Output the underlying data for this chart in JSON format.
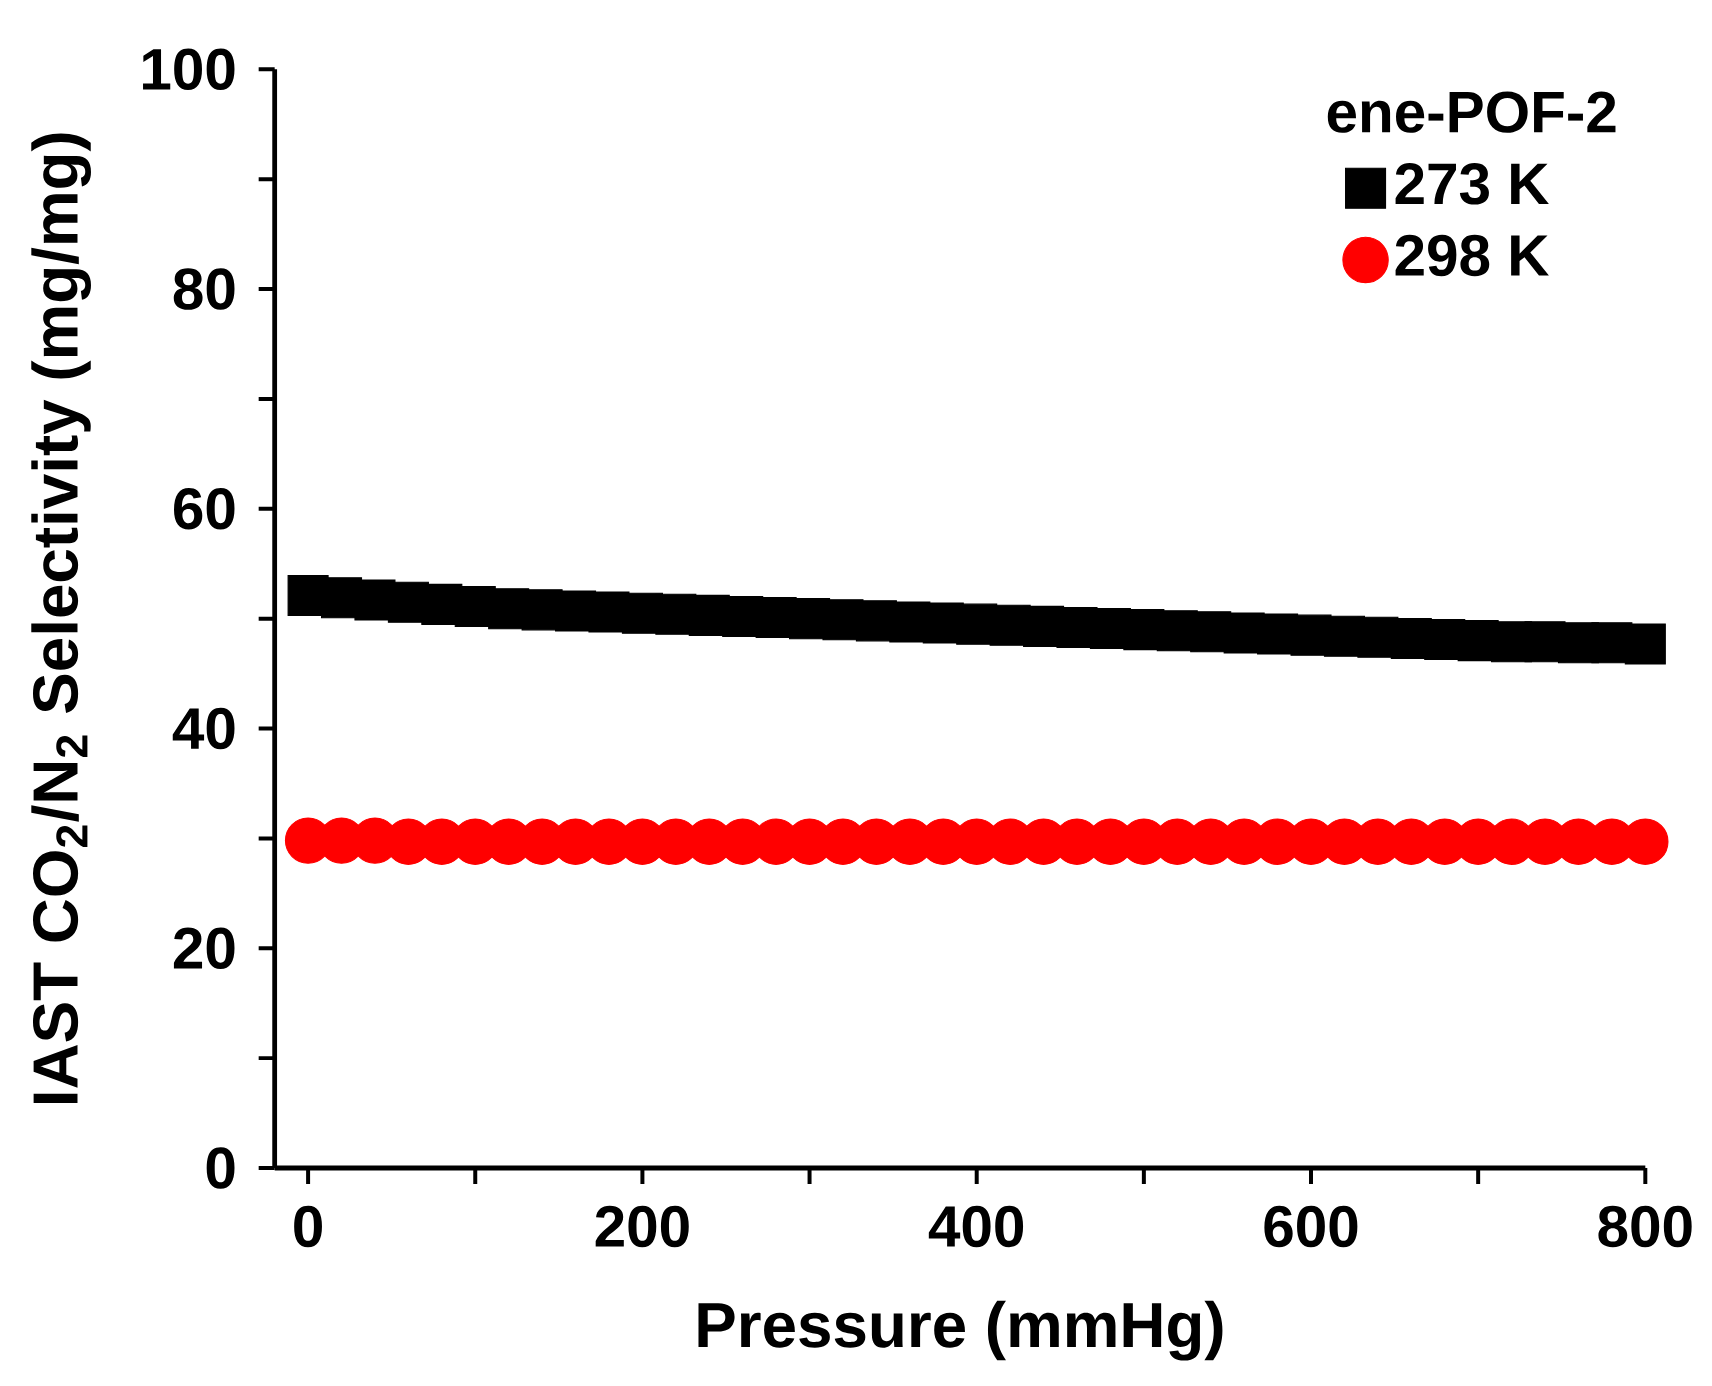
{
  "chart_data": {
    "type": "scatter",
    "xlabel": "Pressure (mmHg)",
    "ylabel": "IAST CO$_{2}$/N$_{2}$ Selectivity (mg/mg)",
    "legend_title": "ene-POF-2",
    "legend": "top right",
    "xlim": [
      -20,
      800
    ],
    "ylim": [
      0,
      100
    ],
    "xticks": [
      0,
      {
        "value": 100,
        "label": null
      },
      200,
      {
        "value": 300,
        "label": null
      },
      400,
      {
        "value": 500,
        "label": null
      },
      600,
      {
        "value": 700,
        "label": null
      },
      800
    ],
    "yticks": [
      0,
      {
        "value": 10,
        "label": null
      },
      20,
      {
        "value": 30,
        "label": null
      },
      40,
      {
        "value": 50,
        "label": null
      },
      60,
      {
        "value": 70,
        "label": null
      },
      80,
      {
        "value": 90,
        "label": null
      },
      100
    ],
    "x": [
      0,
      20,
      40,
      60,
      80,
      100,
      120,
      140,
      160,
      180,
      200,
      220,
      240,
      260,
      280,
      300,
      320,
      340,
      360,
      380,
      400,
      420,
      440,
      460,
      480,
      500,
      520,
      540,
      560,
      580,
      600,
      620,
      640,
      660,
      680,
      700,
      720,
      740,
      760,
      780,
      800
    ],
    "series": [
      {
        "name": "273 K",
        "color": "#000000",
        "marker": "square",
        "values": [
          52.1,
          51.9,
          51.7,
          51.5,
          51.3,
          51.1,
          50.9,
          50.8,
          50.7,
          50.6,
          50.5,
          50.4,
          50.3,
          50.2,
          50.1,
          50.0,
          49.9,
          49.8,
          49.7,
          49.6,
          49.5,
          49.4,
          49.3,
          49.2,
          49.1,
          49.0,
          48.9,
          48.8,
          48.7,
          48.6,
          48.5,
          48.4,
          48.3,
          48.2,
          48.1,
          48.0,
          47.9,
          47.9,
          47.8,
          47.8,
          47.7
        ]
      },
      {
        "name": "298 K",
        "color": "#ff0000",
        "marker": "circle",
        "values": [
          29.8,
          29.8,
          29.8,
          29.7,
          29.7,
          29.7,
          29.7,
          29.7,
          29.7,
          29.7,
          29.7,
          29.7,
          29.7,
          29.7,
          29.7,
          29.7,
          29.7,
          29.7,
          29.7,
          29.7,
          29.7,
          29.7,
          29.7,
          29.7,
          29.7,
          29.7,
          29.7,
          29.7,
          29.7,
          29.7,
          29.7,
          29.7,
          29.7,
          29.7,
          29.7,
          29.7,
          29.7,
          29.7,
          29.7,
          29.7,
          29.7
        ]
      }
    ]
  }
}
